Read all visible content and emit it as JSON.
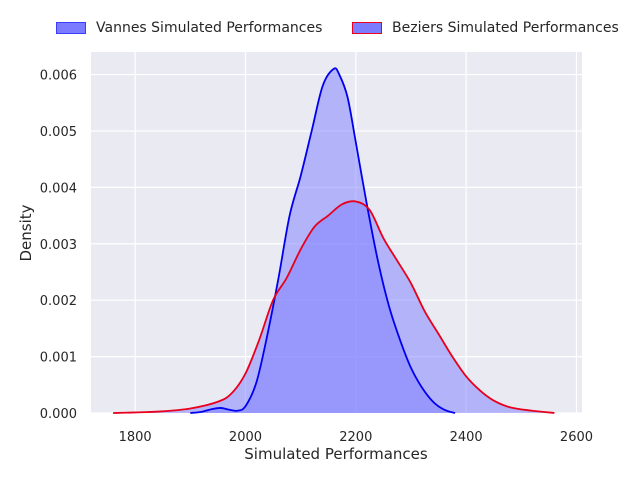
{
  "chart_data": {
    "type": "area",
    "title": "",
    "xlabel": "Simulated Performances",
    "ylabel": "Density",
    "xlim": [
      1720,
      2610
    ],
    "ylim": [
      0,
      0.0064
    ],
    "xticks": [
      1800,
      2000,
      2200,
      2400,
      2600
    ],
    "yticks": [
      0.0,
      0.001,
      0.002,
      0.003,
      0.004,
      0.005,
      0.006
    ],
    "xtick_labels": [
      "1800",
      "2000",
      "2200",
      "2400",
      "2600"
    ],
    "ytick_labels": [
      "0.000",
      "0.001",
      "0.002",
      "0.003",
      "0.004",
      "0.005",
      "0.006"
    ],
    "grid": true,
    "legend_position": "top-center",
    "series": [
      {
        "name": "Vannes Simulated Performances",
        "line_color": "#0000ee",
        "fill_color": "#7b7bff",
        "points": [
          [
            1900,
            0.0
          ],
          [
            1920,
            2e-05
          ],
          [
            1940,
            7e-05
          ],
          [
            1955,
            9e-05
          ],
          [
            1970,
            6e-05
          ],
          [
            1985,
            4e-05
          ],
          [
            2000,
            0.00012
          ],
          [
            2020,
            0.00055
          ],
          [
            2040,
            0.0014
          ],
          [
            2060,
            0.0024
          ],
          [
            2080,
            0.0035
          ],
          [
            2100,
            0.0042
          ],
          [
            2120,
            0.005
          ],
          [
            2140,
            0.0058
          ],
          [
            2160,
            0.0061
          ],
          [
            2170,
            0.006
          ],
          [
            2185,
            0.0056
          ],
          [
            2200,
            0.0048
          ],
          [
            2220,
            0.0037
          ],
          [
            2240,
            0.0027
          ],
          [
            2260,
            0.0019
          ],
          [
            2280,
            0.0013
          ],
          [
            2300,
            0.0008
          ],
          [
            2320,
            0.00045
          ],
          [
            2340,
            0.0002
          ],
          [
            2360,
            6e-05
          ],
          [
            2380,
            0.0
          ]
        ]
      },
      {
        "name": "Beziers Simulated Performances",
        "line_color": "#e8001c",
        "fill_color": "#7b7bff",
        "points": [
          [
            1760,
            0.0
          ],
          [
            1800,
            1e-05
          ],
          [
            1850,
            3e-05
          ],
          [
            1900,
            8e-05
          ],
          [
            1950,
            0.0002
          ],
          [
            1975,
            0.00035
          ],
          [
            2000,
            0.0007
          ],
          [
            2025,
            0.0013
          ],
          [
            2050,
            0.002
          ],
          [
            2075,
            0.0024
          ],
          [
            2100,
            0.0029
          ],
          [
            2125,
            0.0033
          ],
          [
            2150,
            0.0035
          ],
          [
            2175,
            0.0037
          ],
          [
            2200,
            0.00375
          ],
          [
            2225,
            0.0036
          ],
          [
            2250,
            0.0031
          ],
          [
            2275,
            0.0027
          ],
          [
            2300,
            0.0023
          ],
          [
            2325,
            0.0018
          ],
          [
            2350,
            0.0014
          ],
          [
            2375,
            0.001
          ],
          [
            2400,
            0.00065
          ],
          [
            2425,
            0.0004
          ],
          [
            2450,
            0.00022
          ],
          [
            2480,
            0.0001
          ],
          [
            2520,
            4e-05
          ],
          [
            2560,
            0.0
          ]
        ]
      }
    ]
  }
}
